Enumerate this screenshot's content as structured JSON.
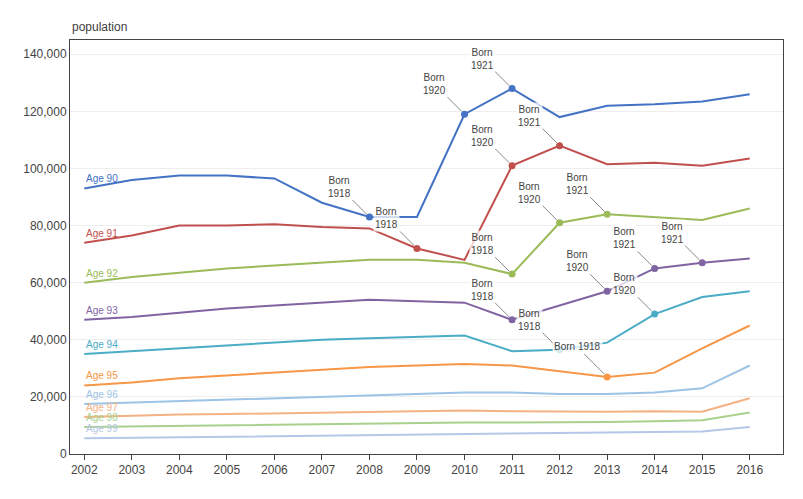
{
  "chart_data": {
    "type": "line",
    "ylabel": "population",
    "x": [
      2002,
      2003,
      2004,
      2005,
      2006,
      2007,
      2008,
      2009,
      2010,
      2011,
      2012,
      2013,
      2014,
      2015,
      2016
    ],
    "series": [
      {
        "name": "Age 90",
        "color": "#4472C4",
        "values": [
          93000,
          96000,
          97500,
          97500,
          96500,
          88000,
          83000,
          83000,
          119000,
          128000,
          118000,
          122000,
          122500,
          123500,
          126000
        ]
      },
      {
        "name": "Age 91",
        "color": "#C0504D",
        "values": [
          74000,
          76500,
          80000,
          80000,
          80500,
          79500,
          79000,
          72000,
          68000,
          101000,
          108000,
          101500,
          102000,
          101000,
          103500
        ]
      },
      {
        "name": "Age 92",
        "color": "#9BBB59",
        "values": [
          60000,
          62000,
          63500,
          65000,
          66000,
          67000,
          68000,
          68000,
          67000,
          63000,
          81000,
          84000,
          83000,
          82000,
          86000
        ]
      },
      {
        "name": "Age 93",
        "color": "#8064A2",
        "values": [
          47000,
          48000,
          49500,
          51000,
          52000,
          53000,
          54000,
          53500,
          53000,
          47000,
          52000,
          57000,
          65000,
          67000,
          68500
        ]
      },
      {
        "name": "Age 94",
        "color": "#4BACC6",
        "values": [
          35000,
          36000,
          37000,
          38000,
          39000,
          40000,
          40500,
          41000,
          41500,
          36000,
          36500,
          39000,
          49000,
          55000,
          57000
        ]
      },
      {
        "name": "Age 95",
        "color": "#F79646",
        "values": [
          24000,
          25000,
          26500,
          27500,
          28500,
          29500,
          30500,
          31000,
          31500,
          31000,
          29000,
          27000,
          28500,
          37000,
          45000
        ]
      },
      {
        "name": "Age 96",
        "color": "#9DC3E6",
        "values": [
          17500,
          18000,
          18500,
          19000,
          19500,
          20000,
          20500,
          21000,
          21500,
          21500,
          21000,
          21000,
          21500,
          23000,
          31000
        ]
      },
      {
        "name": "Age 97",
        "color": "#F4B183",
        "values": [
          13000,
          13500,
          13800,
          14000,
          14200,
          14500,
          14700,
          15000,
          15200,
          15000,
          14800,
          14800,
          15000,
          14800,
          19500
        ]
      },
      {
        "name": "Age 98",
        "color": "#A9D18E",
        "values": [
          9500,
          9700,
          9900,
          10000,
          10200,
          10400,
          10600,
          10800,
          11000,
          11000,
          11000,
          11200,
          11500,
          11800,
          14500
        ]
      },
      {
        "name": "Age 99",
        "color": "#B4C7E7",
        "values": [
          5500,
          5700,
          5900,
          6000,
          6200,
          6400,
          6600,
          6800,
          7000,
          7200,
          7300,
          7500,
          7700,
          7900,
          9500
        ]
      }
    ],
    "annotations": [
      {
        "text": "Born\n1918",
        "series": "Age 90",
        "x": 2008
      },
      {
        "text": "Born\n1920",
        "series": "Age 90",
        "x": 2010
      },
      {
        "text": "Born\n1921",
        "series": "Age 90",
        "x": 2011
      },
      {
        "text": "Born\n1918",
        "series": "Age 91",
        "x": 2009
      },
      {
        "text": "Born\n1920",
        "series": "Age 91",
        "x": 2011
      },
      {
        "text": "Born\n1921",
        "series": "Age 91",
        "x": 2012
      },
      {
        "text": "Born\n1918",
        "series": "Age 92",
        "x": 2011
      },
      {
        "text": "Born\n1920",
        "series": "Age 92",
        "x": 2012
      },
      {
        "text": "Born\n1921",
        "series": "Age 92",
        "x": 2013
      },
      {
        "text": "Born\n1918",
        "series": "Age 93",
        "x": 2011
      },
      {
        "text": "Born\n1920",
        "series": "Age 93",
        "x": 2013
      },
      {
        "text": "Born\n1921",
        "series": "Age 93",
        "x": 2014
      },
      {
        "text": "Born\n1918",
        "series": "Age 94",
        "x": 2012
      },
      {
        "text": "Born\n1920",
        "series": "Age 94",
        "x": 2014
      },
      {
        "text": "Born 1918",
        "series": "Age 95",
        "x": 2013
      },
      {
        "text": "Born\n1921",
        "series": "Age 93",
        "x": 2015
      }
    ],
    "xlim": [
      2001.7,
      2016.7
    ],
    "xticks": [
      2002,
      2003,
      2004,
      2005,
      2006,
      2007,
      2008,
      2009,
      2010,
      2011,
      2012,
      2013,
      2014,
      2015,
      2016
    ],
    "ylim": [
      0,
      145000
    ],
    "yticks": [
      0,
      {
        "value": 20000,
        "label": "20,000"
      },
      {
        "value": 40000,
        "label": "40,000"
      },
      {
        "value": 60000,
        "label": "60,000"
      },
      {
        "value": 80000,
        "label": "80,000"
      },
      {
        "value": 100000,
        "label": "100,000"
      },
      {
        "value": 120000,
        "label": "120,000"
      },
      {
        "value": 140000,
        "label": "140,000"
      }
    ],
    "grid": true
  }
}
